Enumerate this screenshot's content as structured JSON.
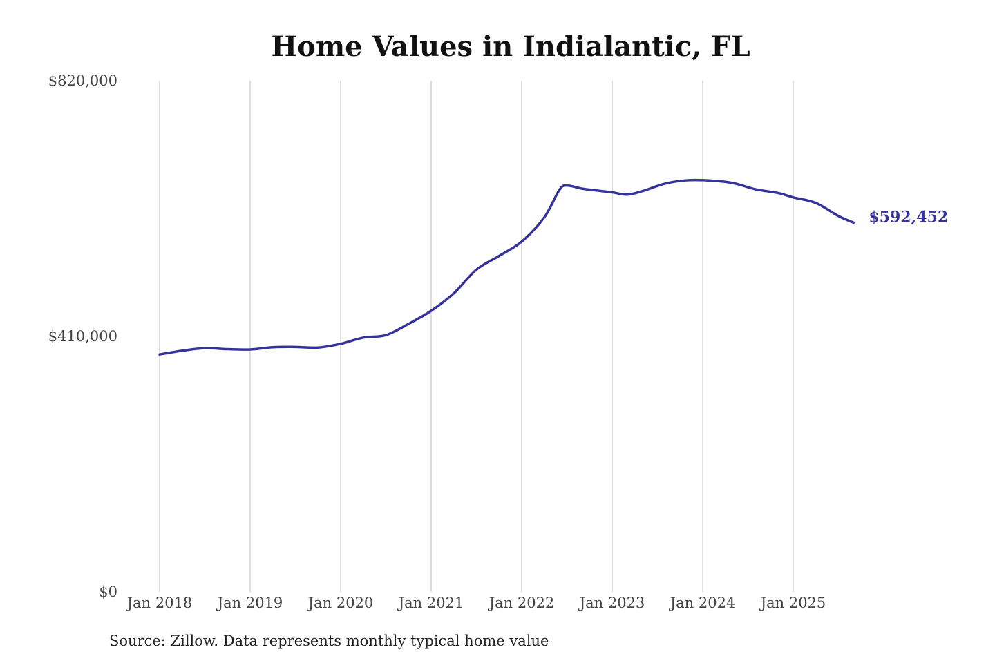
{
  "chart_data": {
    "type": "line",
    "title": "Home Values in Indialantic, FL",
    "source": "Source: Zillow. Data represents monthly typical home value",
    "xlabel": "",
    "ylabel": "",
    "ylim": [
      0,
      820000
    ],
    "y_ticks": [
      0,
      410000,
      820000
    ],
    "y_tick_labels": [
      "$0",
      "$410,000",
      "$820,000"
    ],
    "x_ticks": [
      "2018-01",
      "2019-01",
      "2020-01",
      "2021-01",
      "2022-01",
      "2023-01",
      "2024-01",
      "2025-01"
    ],
    "x_tick_labels": [
      "Jan 2018",
      "Jan 2019",
      "Jan 2020",
      "Jan 2021",
      "Jan 2022",
      "Jan 2023",
      "Jan 2024",
      "Jan 2025"
    ],
    "grid": "vertical",
    "line_color": "#35329a",
    "end_label": "$592,452",
    "series": [
      {
        "points": [
          [
            "2018-01",
            381000
          ],
          [
            "2018-04",
            387000
          ],
          [
            "2018-07",
            391000
          ],
          [
            "2018-10",
            389500
          ],
          [
            "2019-01",
            389000
          ],
          [
            "2019-04",
            392500
          ],
          [
            "2019-07",
            393000
          ],
          [
            "2019-10",
            392000
          ],
          [
            "2020-01",
            398000
          ],
          [
            "2020-04",
            408000
          ],
          [
            "2020-07",
            412000
          ],
          [
            "2020-10",
            430000
          ],
          [
            "2021-01",
            451000
          ],
          [
            "2021-04",
            479000
          ],
          [
            "2021-07",
            517000
          ],
          [
            "2021-10",
            539000
          ],
          [
            "2022-01",
            562000
          ],
          [
            "2022-04",
            601000
          ],
          [
            "2022-06",
            645000
          ],
          [
            "2022-07",
            652000
          ],
          [
            "2022-09",
            647000
          ],
          [
            "2022-11",
            644000
          ],
          [
            "2023-01",
            641000
          ],
          [
            "2023-03",
            637500
          ],
          [
            "2023-05",
            643000
          ],
          [
            "2023-08",
            655000
          ],
          [
            "2023-11",
            660500
          ],
          [
            "2024-02",
            660000
          ],
          [
            "2024-05",
            656000
          ],
          [
            "2024-08",
            646000
          ],
          [
            "2024-11",
            640000
          ],
          [
            "2025-01",
            633000
          ],
          [
            "2025-04",
            624000
          ],
          [
            "2025-07",
            603000
          ],
          [
            "2025-09",
            592452
          ]
        ]
      }
    ]
  }
}
